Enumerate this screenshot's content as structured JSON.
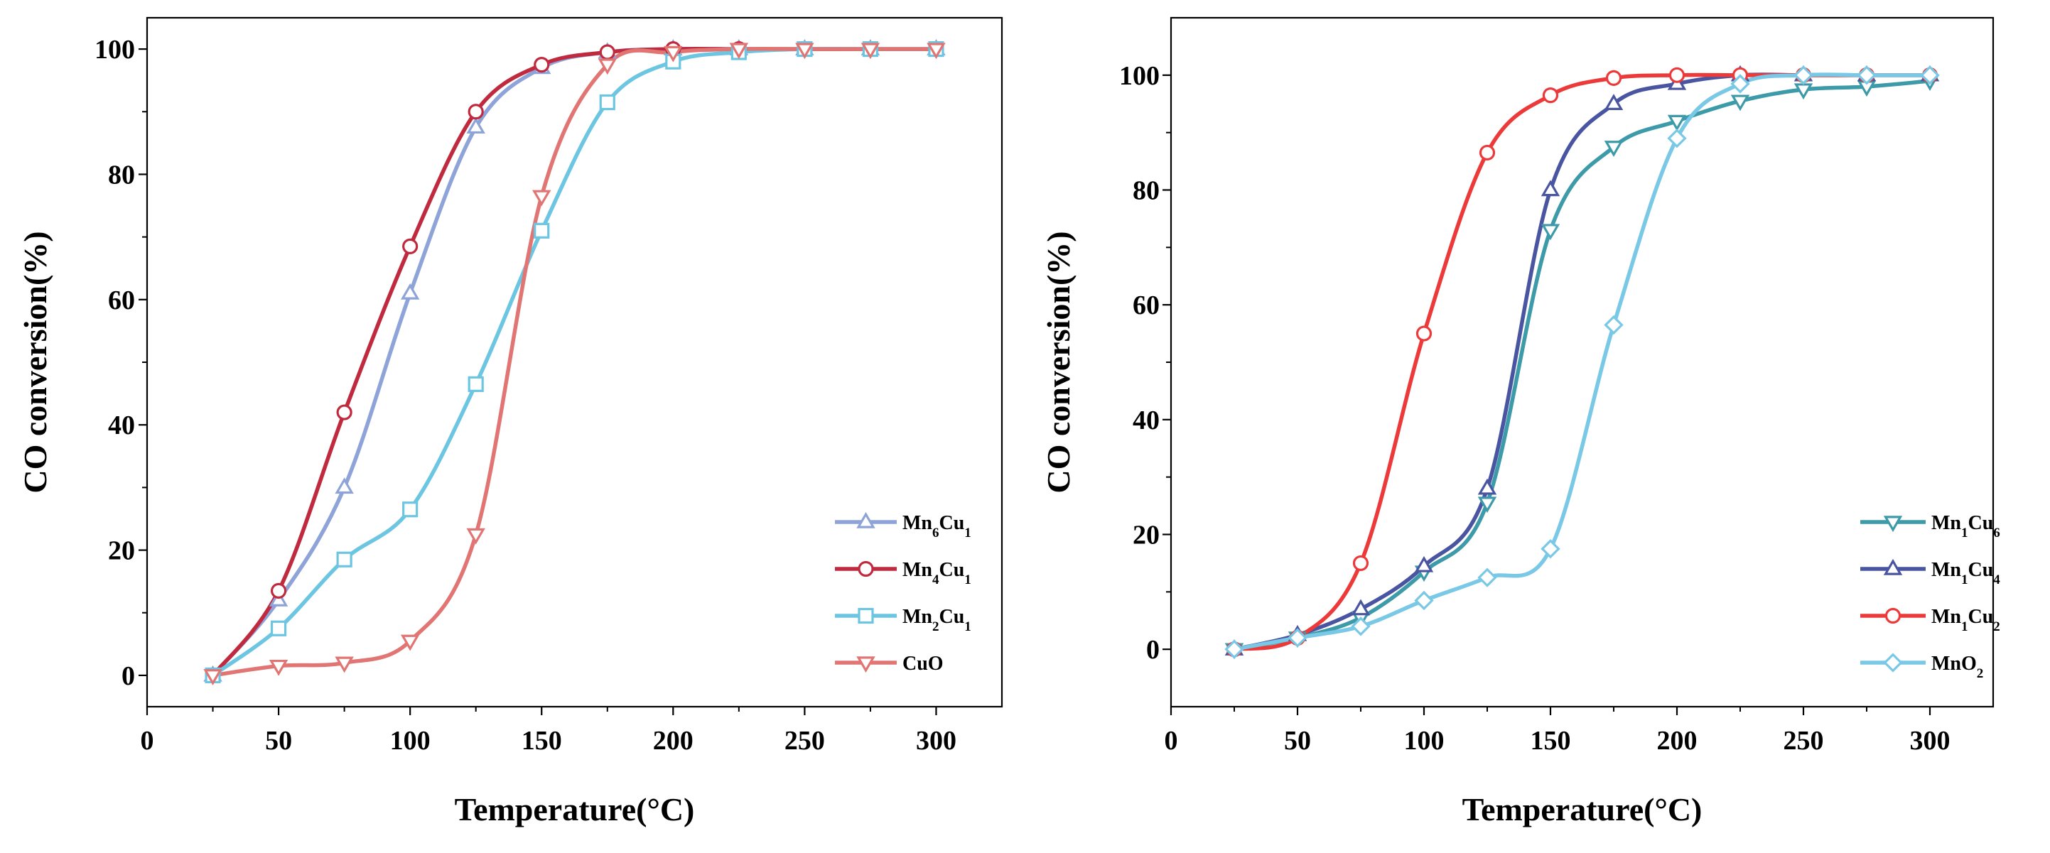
{
  "chart_data": [
    {
      "type": "line",
      "xlabel": "Temperature(°C)",
      "ylabel": "CO conversion(%)",
      "xlim": [
        0,
        325
      ],
      "ylim": [
        -5,
        105
      ],
      "xticks": [
        0,
        50,
        100,
        150,
        200,
        250,
        300
      ],
      "yticks": [
        0,
        20,
        40,
        60,
        80,
        100
      ],
      "legend_position": "bottom-right",
      "x": [
        25,
        50,
        75,
        100,
        125,
        150,
        175,
        200,
        225,
        250,
        275,
        300
      ],
      "series": [
        {
          "name": "Mn6Cu1",
          "base": "Mn",
          "sub1": "6",
          "mid": "Cu",
          "sub2": "1",
          "color": "#8ea3d8",
          "marker": "triangle-up",
          "values": [
            0,
            12,
            30,
            61,
            87.5,
            97,
            99.5,
            100,
            100,
            100,
            100,
            100
          ]
        },
        {
          "name": "Mn4Cu1",
          "base": "Mn",
          "sub1": "4",
          "mid": "Cu",
          "sub2": "1",
          "color": "#c02a3e",
          "marker": "circle",
          "values": [
            0,
            13.5,
            42,
            68.5,
            90,
            97.5,
            99.5,
            100,
            100,
            100,
            100,
            100
          ]
        },
        {
          "name": "Mn2Cu1",
          "base": "Mn",
          "sub1": "2",
          "mid": "Cu",
          "sub2": "1",
          "color": "#6cc6e2",
          "marker": "square",
          "values": [
            0,
            7.5,
            18.5,
            26.5,
            46.5,
            71,
            91.5,
            98,
            99.5,
            100,
            100,
            100
          ]
        },
        {
          "name": "CuO",
          "base": "CuO",
          "sub1": "",
          "mid": "",
          "sub2": "",
          "color": "#e07573",
          "marker": "triangle-down",
          "values": [
            0,
            1.5,
            2,
            5.5,
            22.5,
            76.5,
            97.5,
            99.5,
            100,
            100,
            100,
            100
          ]
        }
      ]
    },
    {
      "type": "line",
      "xlabel": "Temperature(°C)",
      "ylabel": "CO conversion(%)",
      "xlim": [
        0,
        325
      ],
      "ylim": [
        -10,
        110
      ],
      "xticks": [
        0,
        50,
        100,
        150,
        200,
        250,
        300
      ],
      "yticks": [
        0,
        20,
        40,
        60,
        80,
        100
      ],
      "legend_position": "bottom-right",
      "x": [
        25,
        50,
        75,
        100,
        125,
        150,
        175,
        200,
        225,
        250,
        275,
        300
      ],
      "series": [
        {
          "name": "Mn1Cu6",
          "base": "Mn",
          "sub1": "1",
          "mid": "Cu",
          "sub2": "6",
          "color": "#3d9aa8",
          "marker": "triangle-down",
          "values": [
            0,
            2,
            5.5,
            13.5,
            25.5,
            73,
            87.5,
            92,
            95.5,
            97.5,
            98,
            99
          ]
        },
        {
          "name": "Mn1Cu4",
          "base": "Mn",
          "sub1": "1",
          "mid": "Cu",
          "sub2": "4",
          "color": "#4a55a2",
          "marker": "triangle-up",
          "values": [
            0,
            2.5,
            7,
            14.5,
            28,
            80,
            95,
            98.5,
            100,
            100,
            100,
            100
          ]
        },
        {
          "name": "Mn1Cu2",
          "base": "Mn",
          "sub1": "1",
          "mid": "Cu",
          "sub2": "2",
          "color": "#ec3a3a",
          "marker": "circle",
          "values": [
            0,
            2,
            15,
            55,
            86.5,
            96.5,
            99.5,
            100,
            100,
            100,
            100,
            100
          ]
        },
        {
          "name": "MnO2",
          "base": "MnO",
          "sub1": "2",
          "mid": "",
          "sub2": "",
          "color": "#78c8e6",
          "marker": "diamond",
          "values": [
            0,
            2,
            4,
            8.5,
            12.5,
            17.5,
            56.5,
            89,
            98.5,
            100,
            100,
            100
          ]
        }
      ]
    }
  ]
}
